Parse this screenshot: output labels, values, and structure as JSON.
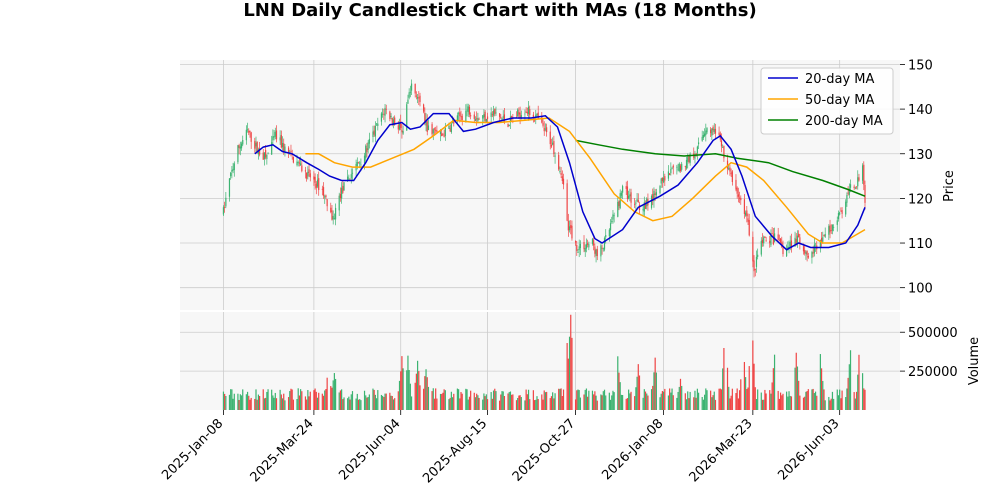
{
  "chart_data": {
    "type": "candlestick",
    "title": "LNN Daily Candlestick Chart with MAs (18 Months)",
    "price_panel": {
      "ylabel": "Price",
      "ylim": [
        95,
        151
      ],
      "yticks": [
        100,
        110,
        120,
        130,
        140,
        150
      ],
      "grid": true,
      "legend_position": "top-right"
    },
    "volume_panel": {
      "ylabel": "Volume",
      "ylim": [
        0,
        630000
      ],
      "yticks": [
        250000,
        500000
      ],
      "ytick_labels": [
        "250000",
        "500000"
      ],
      "grid": true
    },
    "x_axis": {
      "start": "2025-01-01",
      "end": "2026-06-24",
      "ticks": [
        "2025-01-08",
        "2025-03-24",
        "2025-06-04",
        "2025-08-15",
        "2025-10-27",
        "2026-01-08",
        "2026-03-23",
        "2026-06-03"
      ],
      "tick_labels": [
        "2025-Jan-08",
        "2025-Mar-24",
        "2025-Jun-04",
        "2025-Aug-15",
        "2025-Oct-27",
        "2026-Jan-08",
        "2026-Mar-23",
        "2026-Jun-03"
      ]
    },
    "colors": {
      "up": "#3cb371",
      "down": "#ef4444",
      "ma20": "#0000cd",
      "ma50": "#ffa500",
      "ma200": "#008000",
      "grid": "#cccccc",
      "panel_bg": "#f7f7f7"
    },
    "price_anchors": [
      [
        "2025-01-08",
        117
      ],
      [
        "2025-01-13",
        124
      ],
      [
        "2025-01-20",
        131
      ],
      [
        "2025-01-28",
        135
      ],
      [
        "2025-02-05",
        131
      ],
      [
        "2025-02-12",
        129
      ],
      [
        "2025-02-20",
        134
      ],
      [
        "2025-02-28",
        131
      ],
      [
        "2025-03-10",
        128
      ],
      [
        "2025-03-20",
        125
      ],
      [
        "2025-03-31",
        122
      ],
      [
        "2025-04-08",
        115
      ],
      [
        "2025-04-15",
        121
      ],
      [
        "2025-04-25",
        126
      ],
      [
        "2025-05-05",
        130
      ],
      [
        "2025-05-15",
        136
      ],
      [
        "2025-05-22",
        140
      ],
      [
        "2025-05-30",
        137
      ],
      [
        "2025-06-06",
        135
      ],
      [
        "2025-06-12",
        145
      ],
      [
        "2025-06-18",
        143
      ],
      [
        "2025-06-26",
        136
      ],
      [
        "2025-07-08",
        134
      ],
      [
        "2025-07-18",
        137
      ],
      [
        "2025-07-30",
        140
      ],
      [
        "2025-08-08",
        138
      ],
      [
        "2025-08-20",
        139
      ],
      [
        "2025-09-01",
        137
      ],
      [
        "2025-09-15",
        140
      ],
      [
        "2025-09-25",
        138
      ],
      [
        "2025-10-08",
        132
      ],
      [
        "2025-10-16",
        125
      ],
      [
        "2025-10-21",
        114
      ],
      [
        "2025-10-28",
        109
      ],
      [
        "2025-11-10",
        110
      ],
      [
        "2025-11-14",
        107
      ],
      [
        "2025-11-20",
        110
      ],
      [
        "2025-11-28",
        116
      ],
      [
        "2025-12-05",
        122
      ],
      [
        "2025-12-15",
        119
      ],
      [
        "2025-12-23",
        118
      ],
      [
        "2026-01-05",
        123
      ],
      [
        "2026-01-15",
        126
      ],
      [
        "2026-01-26",
        128
      ],
      [
        "2026-02-05",
        131
      ],
      [
        "2026-02-12",
        136
      ],
      [
        "2026-02-22",
        134
      ],
      [
        "2026-03-03",
        126
      ],
      [
        "2026-03-12",
        120
      ],
      [
        "2026-03-18",
        116
      ],
      [
        "2026-03-24",
        104
      ],
      [
        "2026-03-30",
        110
      ],
      [
        "2026-04-10",
        111
      ],
      [
        "2026-04-18",
        108
      ],
      [
        "2026-04-28",
        111
      ],
      [
        "2026-05-08",
        107
      ],
      [
        "2026-05-18",
        110
      ],
      [
        "2026-05-28",
        114
      ],
      [
        "2026-06-05",
        117
      ],
      [
        "2026-06-12",
        122
      ],
      [
        "2026-06-18",
        124
      ],
      [
        "2026-06-22",
        128
      ],
      [
        "2026-06-24",
        120
      ]
    ],
    "ma20": [
      [
        "2025-02-03",
        130
      ],
      [
        "2025-02-10",
        131.5
      ],
      [
        "2025-02-18",
        132
      ],
      [
        "2025-02-26",
        130.5
      ],
      [
        "2025-03-06",
        130
      ],
      [
        "2025-03-18",
        128
      ],
      [
        "2025-03-28",
        126.5
      ],
      [
        "2025-04-06",
        125
      ],
      [
        "2025-04-16",
        124
      ],
      [
        "2025-04-26",
        124
      ],
      [
        "2025-05-06",
        128
      ],
      [
        "2025-05-16",
        133
      ],
      [
        "2025-05-26",
        136.5
      ],
      [
        "2025-06-05",
        137
      ],
      [
        "2025-06-12",
        135.5
      ],
      [
        "2025-06-20",
        136
      ],
      [
        "2025-07-01",
        139
      ],
      [
        "2025-07-14",
        139
      ],
      [
        "2025-07-26",
        135
      ],
      [
        "2025-08-05",
        135.5
      ],
      [
        "2025-08-20",
        137
      ],
      [
        "2025-09-05",
        138
      ],
      [
        "2025-09-20",
        138
      ],
      [
        "2025-10-02",
        138.5
      ],
      [
        "2025-10-12",
        136
      ],
      [
        "2025-10-22",
        128
      ],
      [
        "2025-11-02",
        117
      ],
      [
        "2025-11-12",
        111
      ],
      [
        "2025-11-18",
        110
      ],
      [
        "2025-12-05",
        113
      ],
      [
        "2025-12-18",
        118
      ],
      [
        "2026-01-05",
        120.5
      ],
      [
        "2026-01-20",
        123
      ],
      [
        "2026-02-05",
        128
      ],
      [
        "2026-02-18",
        133
      ],
      [
        "2026-02-24",
        134
      ],
      [
        "2026-03-05",
        131
      ],
      [
        "2026-03-14",
        125
      ],
      [
        "2026-03-25",
        116
      ],
      [
        "2026-04-08",
        111.5
      ],
      [
        "2026-04-20",
        108.5
      ],
      [
        "2026-04-30",
        110
      ],
      [
        "2026-05-10",
        109
      ],
      [
        "2026-05-25",
        109
      ],
      [
        "2026-06-08",
        110
      ],
      [
        "2026-06-18",
        114
      ],
      [
        "2026-06-24",
        118
      ]
    ],
    "ma50": [
      [
        "2025-03-17",
        130
      ],
      [
        "2025-03-28",
        130
      ],
      [
        "2025-04-10",
        128
      ],
      [
        "2025-04-25",
        127
      ],
      [
        "2025-05-10",
        127
      ],
      [
        "2025-05-28",
        129
      ],
      [
        "2025-06-15",
        131
      ],
      [
        "2025-07-01",
        134
      ],
      [
        "2025-07-18",
        137.5
      ],
      [
        "2025-08-05",
        137
      ],
      [
        "2025-08-25",
        137
      ],
      [
        "2025-09-15",
        137.5
      ],
      [
        "2025-10-05",
        138
      ],
      [
        "2025-10-22",
        135
      ],
      [
        "2025-11-08",
        129
      ],
      [
        "2025-11-28",
        121
      ],
      [
        "2025-12-15",
        117
      ],
      [
        "2025-12-30",
        115
      ],
      [
        "2026-01-15",
        116
      ],
      [
        "2026-02-01",
        120
      ],
      [
        "2026-02-20",
        125
      ],
      [
        "2026-03-05",
        128
      ],
      [
        "2026-03-18",
        127
      ],
      [
        "2026-04-01",
        124
      ],
      [
        "2026-04-20",
        118
      ],
      [
        "2026-05-08",
        112
      ],
      [
        "2026-05-20",
        110
      ],
      [
        "2026-06-05",
        110
      ],
      [
        "2026-06-24",
        113
      ]
    ],
    "ma200": [
      [
        "2025-10-27",
        133
      ],
      [
        "2025-11-15",
        132
      ],
      [
        "2025-12-05",
        131
      ],
      [
        "2026-01-01",
        130
      ],
      [
        "2026-01-25",
        129.5
      ],
      [
        "2026-02-20",
        130
      ],
      [
        "2026-03-10",
        129
      ],
      [
        "2026-04-05",
        128
      ],
      [
        "2026-04-25",
        126
      ],
      [
        "2026-05-20",
        124
      ],
      [
        "2026-06-10",
        122
      ],
      [
        "2026-06-24",
        120.5
      ]
    ],
    "volume_spikes": [
      [
        "2025-03-15",
        150000
      ],
      [
        "2025-04-05",
        270000
      ],
      [
        "2025-04-10",
        230000
      ],
      [
        "2025-06-05",
        330000
      ],
      [
        "2025-06-10",
        320000
      ],
      [
        "2025-06-18",
        300000
      ],
      [
        "2025-06-25",
        260000
      ],
      [
        "2025-10-20",
        420000
      ],
      [
        "2025-10-23",
        600000
      ],
      [
        "2025-12-01",
        320000
      ],
      [
        "2025-12-18",
        280000
      ],
      [
        "2026-01-01",
        310000
      ],
      [
        "2026-01-22",
        180000
      ],
      [
        "2026-02-14",
        150000
      ],
      [
        "2026-02-28",
        520000
      ],
      [
        "2026-03-15",
        380000
      ],
      [
        "2026-03-22",
        560000
      ],
      [
        "2026-04-10",
        330000
      ],
      [
        "2026-04-28",
        350000
      ],
      [
        "2026-05-18",
        330000
      ],
      [
        "2026-06-12",
        360000
      ],
      [
        "2026-06-20",
        450000
      ]
    ],
    "series": [
      {
        "name": "20-day MA"
      },
      {
        "name": "50-day MA"
      },
      {
        "name": "200-day MA"
      }
    ]
  }
}
